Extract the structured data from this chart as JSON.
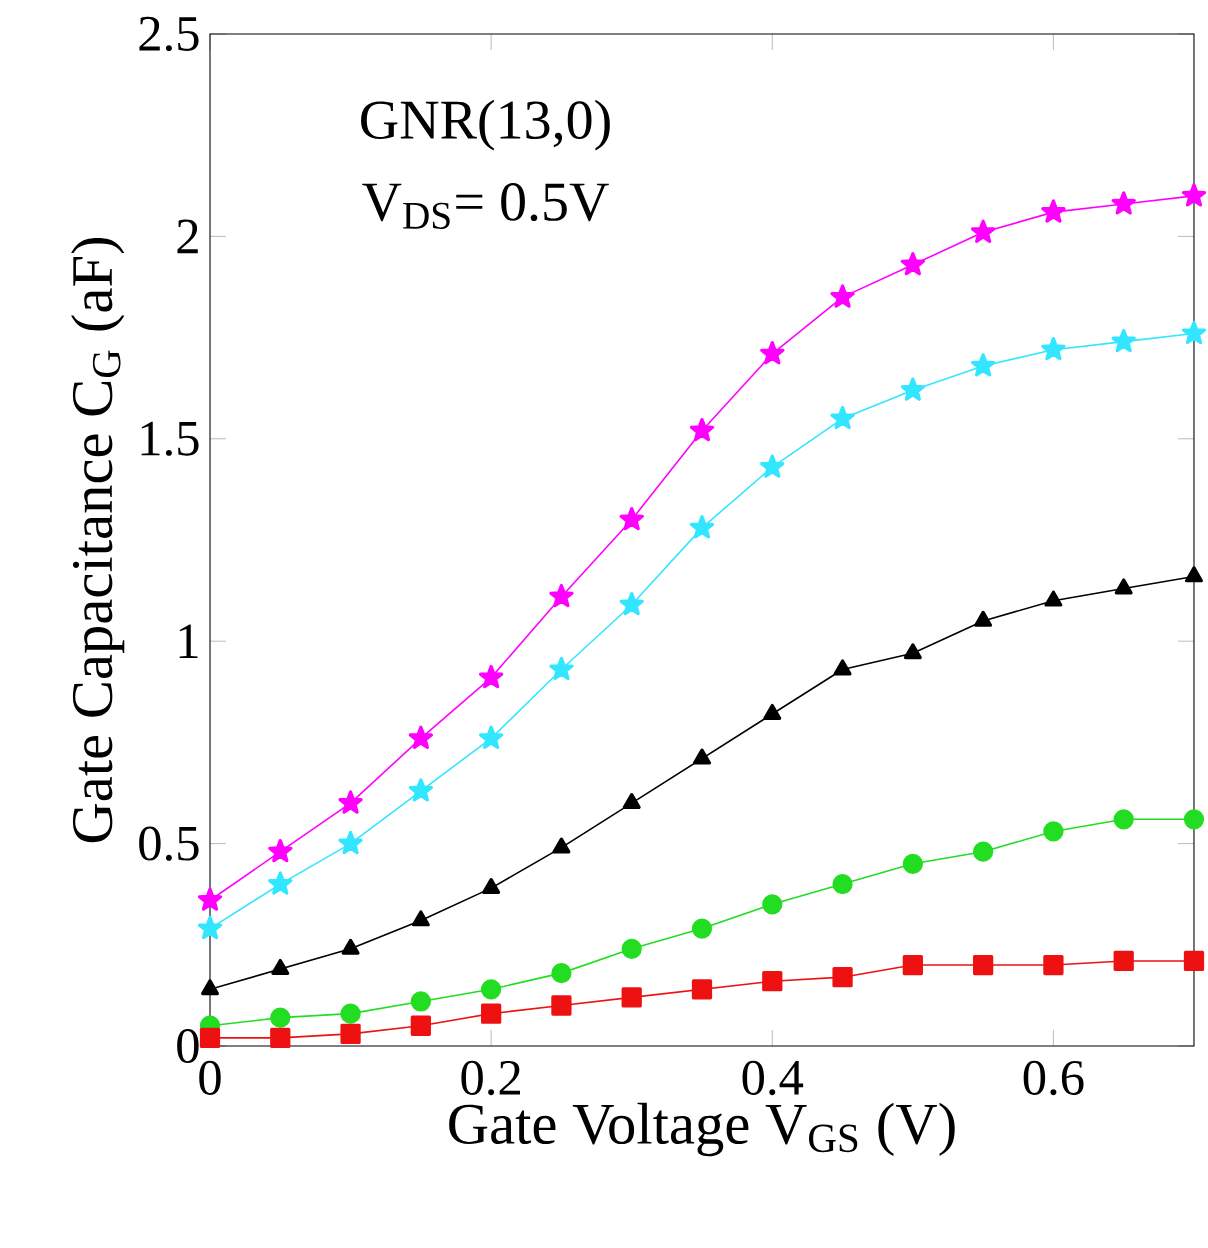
{
  "chart_data": {
    "type": "line",
    "xlabel": "Gate Voltage V$_{GS}$ (V)",
    "ylabel": "Gate Capacitance C$_{G}$ (aF)",
    "annotations": [
      "GNR(13,0)",
      "V$_{DS}$= 0.5V"
    ],
    "x": [
      0,
      0.05,
      0.1,
      0.15,
      0.2,
      0.25,
      0.3,
      0.35,
      0.4,
      0.45,
      0.5,
      0.55,
      0.6,
      0.65,
      0.7
    ],
    "xlim": [
      0,
      0.7
    ],
    "xticks": [
      0,
      0.2,
      0.4,
      0.6
    ],
    "ylim": [
      0,
      2.5
    ],
    "yticks": [
      0,
      0.5,
      1,
      1.5,
      2,
      2.5
    ],
    "grid": false,
    "series": [
      {
        "color": "#ff00ff",
        "marker": "star",
        "values": [
          0.36,
          0.48,
          0.6,
          0.76,
          0.91,
          1.11,
          1.3,
          1.52,
          1.71,
          1.85,
          1.93,
          2.01,
          2.06,
          2.08,
          2.1
        ]
      },
      {
        "color": "#33e6ff",
        "marker": "star",
        "values": [
          0.29,
          0.4,
          0.5,
          0.63,
          0.76,
          0.93,
          1.09,
          1.28,
          1.43,
          1.55,
          1.62,
          1.68,
          1.72,
          1.74,
          1.76
        ]
      },
      {
        "color": "#000000",
        "marker": "triangle",
        "values": [
          0.14,
          0.19,
          0.24,
          0.31,
          0.39,
          0.49,
          0.6,
          0.71,
          0.82,
          0.93,
          0.97,
          1.05,
          1.1,
          1.13,
          1.16
        ]
      },
      {
        "color": "#22dd22",
        "marker": "circle",
        "values": [
          0.05,
          0.07,
          0.08,
          0.11,
          0.14,
          0.18,
          0.24,
          0.29,
          0.35,
          0.4,
          0.45,
          0.48,
          0.53,
          0.56,
          0.56
        ]
      },
      {
        "color": "#ee1111",
        "marker": "square",
        "values": [
          0.02,
          0.02,
          0.03,
          0.05,
          0.08,
          0.1,
          0.12,
          0.14,
          0.16,
          0.17,
          0.2,
          0.2,
          0.2,
          0.21,
          0.21
        ]
      }
    ]
  }
}
